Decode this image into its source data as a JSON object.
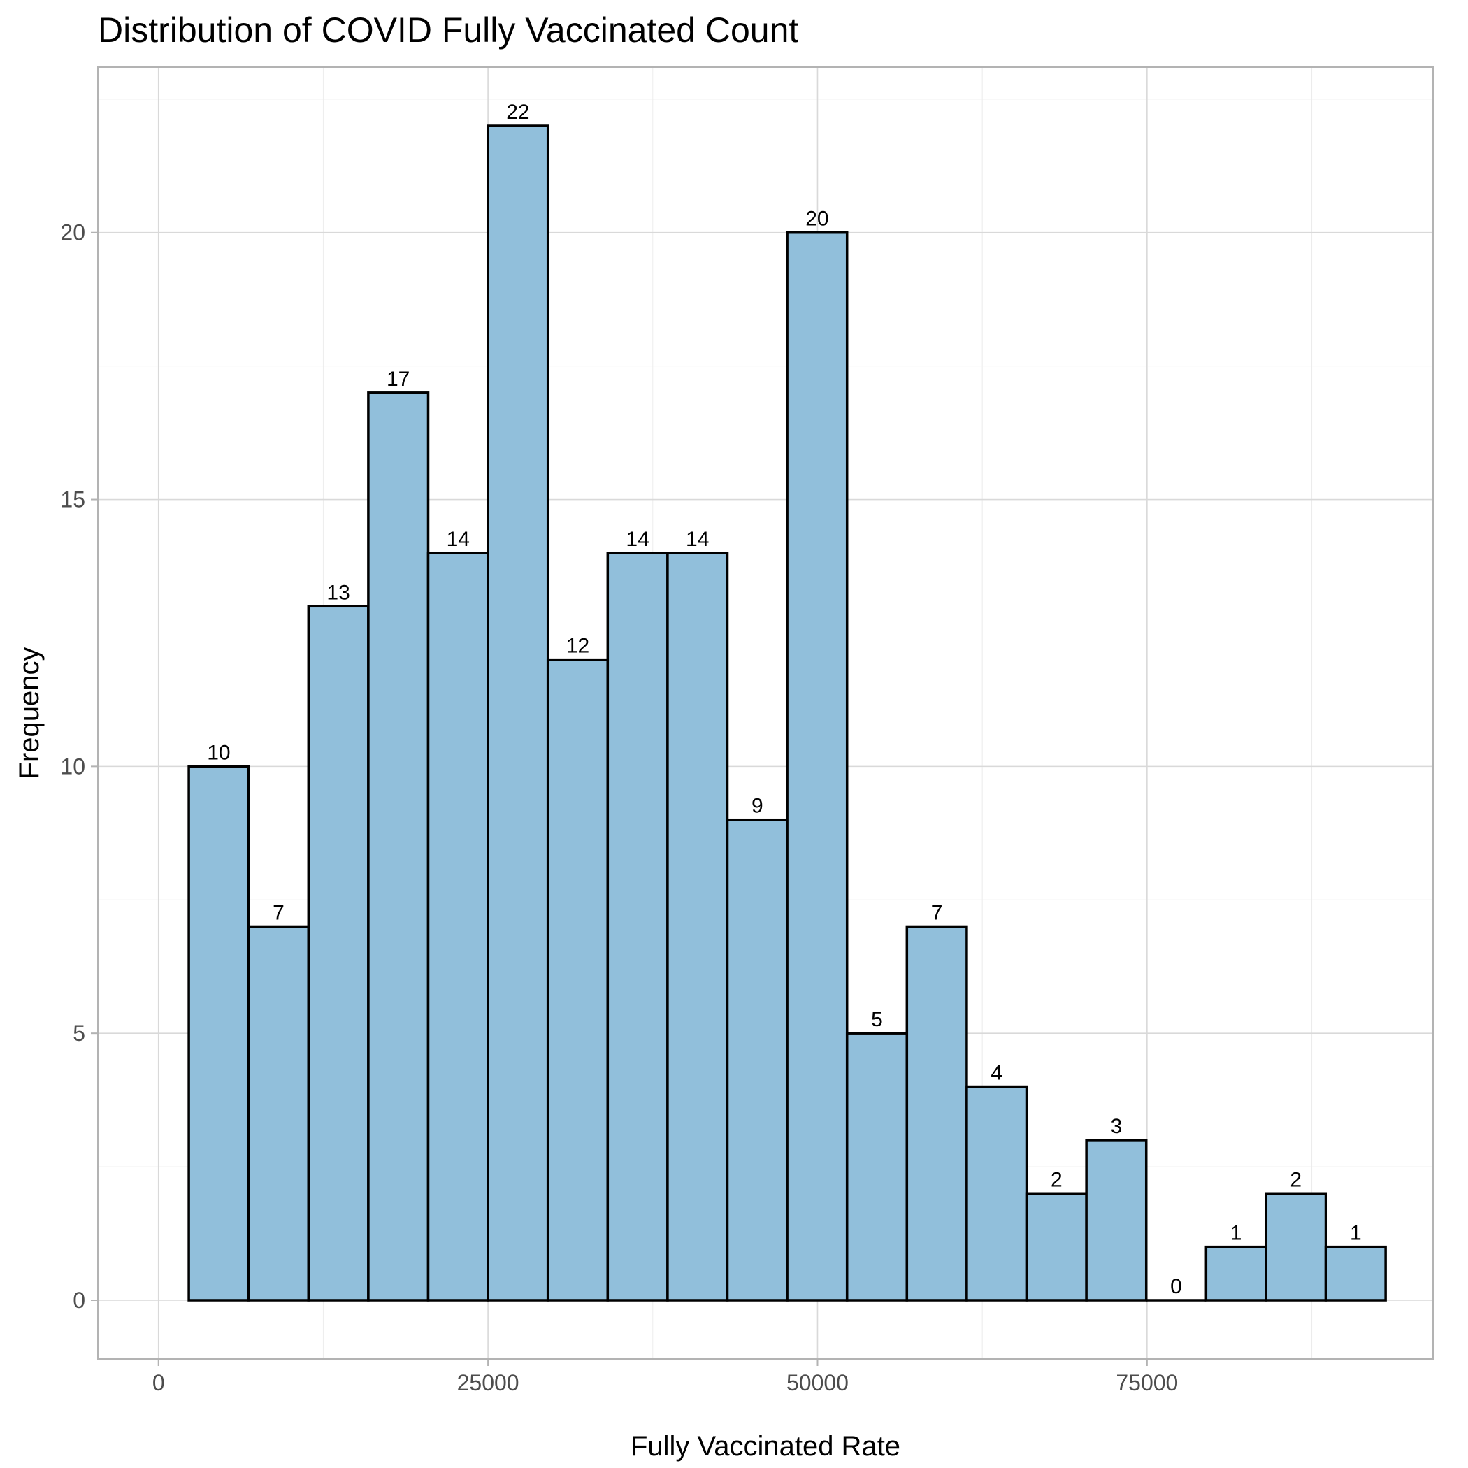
{
  "chart_data": {
    "type": "bar",
    "title": "Distribution of COVID Fully Vaccinated Count",
    "xlabel": "Fully Vaccinated Rate",
    "ylabel": "Frequency",
    "bar_color": "#91BFDB",
    "bar_border_color": "#000000",
    "grid": true,
    "xlim": [
      -4600,
      96700
    ],
    "ylim": [
      -1.1,
      23.1
    ],
    "x_ticks": [
      0,
      25000,
      50000,
      75000
    ],
    "x_tick_labels": [
      "0",
      "25000",
      "50000",
      "75000"
    ],
    "y_ticks": [
      0,
      5,
      10,
      15,
      20
    ],
    "y_tick_labels": [
      "0",
      "5",
      "10",
      "15",
      "20"
    ],
    "bin_start": 2300,
    "bin_width": 4540,
    "values": [
      10,
      7,
      13,
      17,
      14,
      22,
      12,
      14,
      14,
      9,
      20,
      5,
      7,
      4,
      2,
      3,
      0,
      1,
      2,
      1
    ],
    "data_labels": [
      "10",
      "7",
      "13",
      "17",
      "14",
      "22",
      "12",
      "14",
      "14",
      "9",
      "20",
      "5",
      "7",
      "4",
      "2",
      "3",
      "0",
      "1",
      "2",
      "1"
    ]
  }
}
